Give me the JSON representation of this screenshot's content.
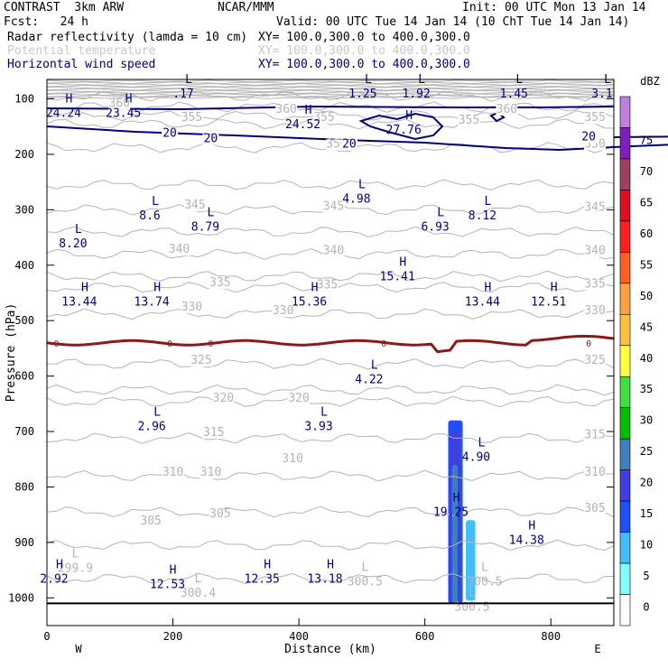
{
  "header": {
    "model": "CONTRAST  3km ARW",
    "center": "NCAR/MMM",
    "init": "Init: 00 UTC Mon 13 Jan 14",
    "fcst": "Fcst:   24 h",
    "valid": "Valid: 00 UTC Tue 14 Jan 14 (10 ChT Tue 14 Jan 14)",
    "fields": [
      {
        "name": "Radar reflectivity (lamda = 10 cm)",
        "xy": "XY= 100.0,300.0 to 400.0,300.0",
        "color": "#000000"
      },
      {
        "name": "Potential temperature",
        "xy": "XY= 100.0,300.0 to 400.0,300.0",
        "color": "#c8c8c8"
      },
      {
        "name": "Horizontal wind speed",
        "xy": "XY= 100.0,300.0 to 400.0,300.0",
        "color": "#000080"
      }
    ]
  },
  "chart_data": {
    "type": "cross-section",
    "xlabel": "Distance (km)",
    "ylabel": "Pressure (hPa)",
    "xlim": [
      0,
      900
    ],
    "ylim": [
      1050,
      65
    ],
    "xticks": [
      0,
      200,
      400,
      600,
      800
    ],
    "yticks": [
      100,
      200,
      300,
      400,
      500,
      600,
      700,
      800,
      900,
      1000
    ],
    "x_end_labels": {
      "left": "W",
      "right": "E"
    },
    "colorbar": {
      "units": "dBZ",
      "levels": [
        0,
        5,
        10,
        15,
        20,
        25,
        30,
        35,
        40,
        45,
        50,
        55,
        60,
        65,
        70,
        75
      ],
      "colors": [
        "#ffffff",
        "#7fffff",
        "#3fbfff",
        "#1f4fff",
        "#3f3fdf",
        "#3f7fbf",
        "#00bf00",
        "#3fdf3f",
        "#ffff3f",
        "#ffbf3f",
        "#ff9f3f",
        "#ff5f1f",
        "#ff1f1f",
        "#df0f1f",
        "#9f3f5f",
        "#7f1fbf",
        "#bf7fdf"
      ]
    },
    "theta_labels": [
      {
        "text": "360",
        "x": 115,
        "p": 115
      },
      {
        "text": "355",
        "x": 230,
        "p": 140
      },
      {
        "text": "360",
        "x": 380,
        "p": 125
      },
      {
        "text": "355",
        "x": 440,
        "p": 140
      },
      {
        "text": "360",
        "x": 730,
        "p": 125
      },
      {
        "text": "355",
        "x": 670,
        "p": 145
      },
      {
        "text": "355",
        "x": 870,
        "p": 140
      },
      {
        "text": "350",
        "x": 460,
        "p": 188
      },
      {
        "text": "350",
        "x": 870,
        "p": 188
      },
      {
        "text": "345",
        "x": 235,
        "p": 298
      },
      {
        "text": "345",
        "x": 455,
        "p": 300
      },
      {
        "text": "345",
        "x": 870,
        "p": 302
      },
      {
        "text": "340",
        "x": 210,
        "p": 378
      },
      {
        "text": "340",
        "x": 455,
        "p": 380
      },
      {
        "text": "340",
        "x": 870,
        "p": 380
      },
      {
        "text": "335",
        "x": 275,
        "p": 438
      },
      {
        "text": "335",
        "x": 445,
        "p": 442
      },
      {
        "text": "335",
        "x": 870,
        "p": 440
      },
      {
        "text": "330",
        "x": 230,
        "p": 482
      },
      {
        "text": "330",
        "x": 375,
        "p": 488
      },
      {
        "text": "330",
        "x": 870,
        "p": 488
      },
      {
        "text": "325",
        "x": 245,
        "p": 578
      },
      {
        "text": "325",
        "x": 870,
        "p": 578
      },
      {
        "text": "320",
        "x": 280,
        "p": 646
      },
      {
        "text": "320",
        "x": 400,
        "p": 646
      },
      {
        "text": "315",
        "x": 265,
        "p": 708
      },
      {
        "text": "315",
        "x": 870,
        "p": 712
      },
      {
        "text": "310",
        "x": 200,
        "p": 780
      },
      {
        "text": "310",
        "x": 260,
        "p": 780
      },
      {
        "text": "310",
        "x": 390,
        "p": 755
      },
      {
        "text": "310",
        "x": 870,
        "p": 780
      },
      {
        "text": "305",
        "x": 165,
        "p": 868
      },
      {
        "text": "305",
        "x": 275,
        "p": 855
      },
      {
        "text": "305",
        "x": 870,
        "p": 845
      }
    ],
    "theta_extrema": [
      {
        "kind": "L",
        "value": "299.9",
        "x": 45,
        "p": 930
      },
      {
        "kind": "L",
        "value": "300.4",
        "x": 240,
        "p": 975
      },
      {
        "kind": "L",
        "value": "300.5",
        "x": 505,
        "p": 955
      },
      {
        "kind": "L",
        "value": "300.5",
        "x": 695,
        "p": 955
      },
      {
        "kind": "L",
        "value": "300.5",
        "x": 675,
        "p": 1000
      }
    ],
    "wind_contour_labels": [
      {
        "text": "20",
        "x": 195,
        "p": 168
      },
      {
        "text": "20",
        "x": 260,
        "p": 178
      },
      {
        "text": "20",
        "x": 480,
        "p": 188
      },
      {
        "text": "20",
        "x": 860,
        "p": 175
      }
    ],
    "wind_extrema": [
      {
        "kind": "L",
        "value": ".17",
        "x": 225,
        "p": 65
      },
      {
        "kind": "L",
        "value": "1.25",
        "x": 510,
        "p": 65
      },
      {
        "kind": "L",
        "value": "1.92",
        "x": 595,
        "p": 65
      },
      {
        "kind": "L",
        "value": "1.45",
        "x": 750,
        "p": 65
      },
      {
        "kind": "L",
        "value": "3.1",
        "x": 890,
        "p": 65
      },
      {
        "kind": "H",
        "value": "24.24",
        "x": 35,
        "p": 100
      },
      {
        "kind": "H",
        "value": "23.45",
        "x": 130,
        "p": 100
      },
      {
        "kind": "H",
        "value": "24.52",
        "x": 415,
        "p": 120
      },
      {
        "kind": "H",
        "value": "27.76",
        "x": 575,
        "p": 130
      },
      {
        "kind": "L",
        "value": "4.98",
        "x": 500,
        "p": 255
      },
      {
        "kind": "L",
        "value": "8.6",
        "x": 172,
        "p": 285
      },
      {
        "kind": "L",
        "value": "8.79",
        "x": 260,
        "p": 305
      },
      {
        "kind": "L",
        "value": "8.12",
        "x": 700,
        "p": 285
      },
      {
        "kind": "L",
        "value": "6.93",
        "x": 625,
        "p": 305
      },
      {
        "kind": "L",
        "value": "8.20",
        "x": 50,
        "p": 335
      },
      {
        "kind": "H",
        "value": "15.41",
        "x": 565,
        "p": 395
      },
      {
        "kind": "H",
        "value": "13.44",
        "x": 60,
        "p": 440
      },
      {
        "kind": "H",
        "value": "13.74",
        "x": 175,
        "p": 440
      },
      {
        "kind": "H",
        "value": "15.36",
        "x": 425,
        "p": 440
      },
      {
        "kind": "H",
        "value": "13.44",
        "x": 700,
        "p": 440
      },
      {
        "kind": "H",
        "value": "12.51",
        "x": 805,
        "p": 440
      },
      {
        "kind": "L",
        "value": "4.22",
        "x": 520,
        "p": 580
      },
      {
        "kind": "L",
        "value": "2.96",
        "x": 175,
        "p": 665
      },
      {
        "kind": "L",
        "value": "3.93",
        "x": 440,
        "p": 665
      },
      {
        "kind": "L",
        "value": "4.90",
        "x": 690,
        "p": 720
      },
      {
        "kind": "H",
        "value": "19.25",
        "x": 650,
        "p": 820
      },
      {
        "kind": "H",
        "value": "14.38",
        "x": 770,
        "p": 870
      },
      {
        "kind": "H",
        "value": "2.92",
        "x": 20,
        "p": 940
      },
      {
        "kind": "H",
        "value": "12.53",
        "x": 200,
        "p": 950
      },
      {
        "kind": "H",
        "value": "12.35",
        "x": 350,
        "p": 940
      },
      {
        "kind": "H",
        "value": "13.18",
        "x": 450,
        "p": 940
      }
    ],
    "freezing_level_label": "0",
    "freezing_level_p": 540,
    "freezing_level_marks_x": [
      15,
      195,
      260,
      535,
      860
    ],
    "reflectivity_cells": [
      {
        "dbz": 10,
        "x0": 637,
        "x1": 660,
        "ptop": 680,
        "pbot": 1010
      },
      {
        "dbz": 15,
        "x0": 640,
        "x1": 655,
        "ptop": 700,
        "pbot": 1010
      },
      {
        "dbz": 20,
        "x0": 643,
        "x1": 652,
        "ptop": 760,
        "pbot": 1010
      },
      {
        "dbz": 5,
        "x0": 665,
        "x1": 680,
        "ptop": 860,
        "pbot": 1005
      }
    ]
  }
}
